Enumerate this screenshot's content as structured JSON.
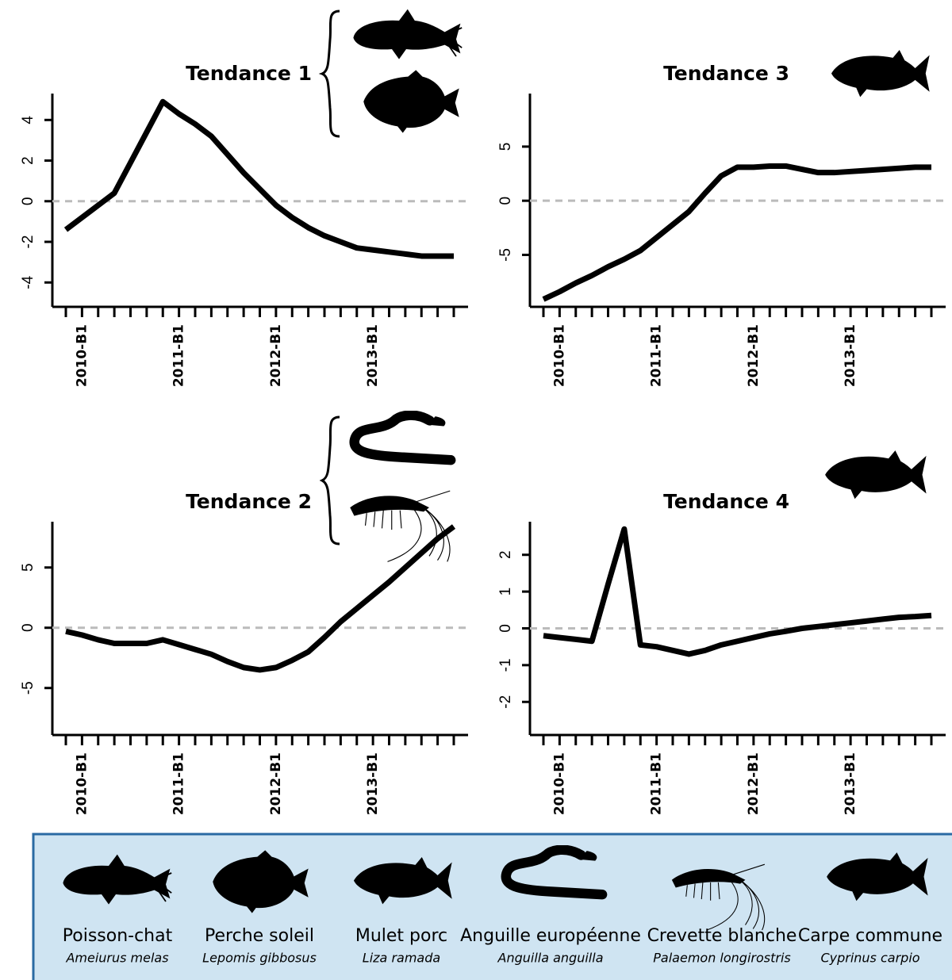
{
  "chart_data": [
    {
      "type": "line",
      "title": "Tendance 1",
      "categories": [
        null,
        "2010-B1",
        null,
        null,
        null,
        null,
        null,
        "2011-B1",
        null,
        null,
        null,
        null,
        null,
        "2012-B1",
        null,
        null,
        null,
        null,
        null,
        "2013-B1",
        null,
        null,
        null,
        null,
        null
      ],
      "values": [
        -1.4,
        -0.8,
        -0.2,
        0.4,
        1.9,
        3.4,
        4.9,
        4.3,
        3.8,
        3.2,
        2.3,
        1.4,
        0.6,
        -0.2,
        -0.8,
        -1.3,
        -1.7,
        -2.0,
        -2.3,
        -2.4,
        -2.5,
        -2.6,
        -2.7,
        -2.7,
        -2.7
      ],
      "color": "#000000",
      "ylim": [
        -5.2,
        5.3
      ],
      "yticks": [
        -4,
        -2,
        0,
        2,
        4
      ],
      "reference_line": 0
    },
    {
      "type": "line",
      "title": "Tendance 3",
      "categories": [
        null,
        "2010-B1",
        null,
        null,
        null,
        null,
        null,
        "2011-B1",
        null,
        null,
        null,
        null,
        null,
        "2012-B1",
        null,
        null,
        null,
        null,
        null,
        "2013-B1",
        null,
        null,
        null,
        null,
        null
      ],
      "values": [
        -9.1,
        -8.4,
        -7.6,
        -6.9,
        -6.1,
        -5.4,
        -4.6,
        -3.4,
        -2.2,
        -1.0,
        0.7,
        2.3,
        3.1,
        3.1,
        3.2,
        3.2,
        2.9,
        2.6,
        2.6,
        2.7,
        2.8,
        2.9,
        3.0,
        3.1,
        3.1
      ],
      "color": "#000000",
      "ylim": [
        -9.8,
        9.9
      ],
      "yticks": [
        -5,
        0,
        5
      ],
      "reference_line": 0
    },
    {
      "type": "line",
      "title": "Tendance 2",
      "categories": [
        null,
        "2010-B1",
        null,
        null,
        null,
        null,
        null,
        "2011-B1",
        null,
        null,
        null,
        null,
        null,
        "2012-B1",
        null,
        null,
        null,
        null,
        null,
        "2013-B1",
        null,
        null,
        null,
        null,
        null
      ],
      "values": [
        -0.3,
        -0.6,
        -1.0,
        -1.3,
        -1.3,
        -1.3,
        -1.0,
        -1.4,
        -1.8,
        -2.2,
        -2.8,
        -3.3,
        -3.5,
        -3.3,
        -2.7,
        -2.0,
        -0.8,
        0.5,
        1.6,
        2.7,
        3.8,
        5.0,
        6.2,
        7.4,
        8.4
      ],
      "color": "#000000",
      "ylim": [
        -8.9,
        8.8
      ],
      "yticks": [
        -5,
        0,
        5
      ],
      "reference_line": 0
    },
    {
      "type": "line",
      "title": "Tendance 4",
      "categories": [
        null,
        "2010-B1",
        null,
        null,
        null,
        null,
        null,
        "2011-B1",
        null,
        null,
        null,
        null,
        null,
        "2012-B1",
        null,
        null,
        null,
        null,
        null,
        "2013-B1",
        null,
        null,
        null,
        null,
        null
      ],
      "values": [
        -0.2,
        -0.25,
        -0.3,
        -0.35,
        1.2,
        2.7,
        -0.45,
        -0.5,
        -0.6,
        -0.7,
        -0.6,
        -0.45,
        -0.35,
        -0.25,
        -0.15,
        -0.08,
        0,
        0.05,
        0.1,
        0.15,
        0.2,
        0.25,
        0.3,
        0.32,
        0.35
      ],
      "color": "#000000",
      "ylim": [
        -2.9,
        2.9
      ],
      "yticks": [
        -2,
        -1,
        0,
        1,
        2
      ],
      "reference_line": 0
    }
  ],
  "species": [
    {
      "name": "Poisson-chat",
      "latin": "Ameiurus melas"
    },
    {
      "name": "Perche soleil",
      "latin": "Lepomis gibbosus"
    },
    {
      "name": "Mulet porc",
      "latin": "Liza ramada"
    },
    {
      "name": "Anguille européenne",
      "latin": "Anguilla anguilla"
    },
    {
      "name": "Crevette blanche",
      "latin": "Palaemon longirostris"
    },
    {
      "name": "Carpe commune",
      "latin": "Cyprinus carpio"
    }
  ]
}
